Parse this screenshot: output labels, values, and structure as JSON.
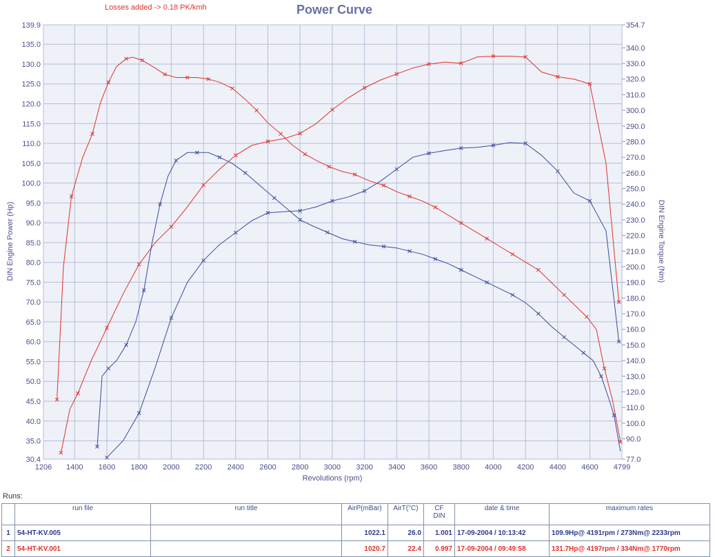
{
  "chart_data": {
    "type": "line",
    "title": "Power Curve",
    "annotation": "Losses added -> 0.18 PK/kmh",
    "xlabel": "Revolutions (rpm)",
    "ylabel": "DIN Engine Power (Hp)",
    "y2label": "DIN Engine Torque (Nm)",
    "xlim": [
      1206,
      4799
    ],
    "ylim": [
      30.4,
      139.9
    ],
    "y2lim": [
      77.0,
      354.7
    ],
    "x_ticks": [
      "1206",
      "1400",
      "1600",
      "1800",
      "2000",
      "2200",
      "2400",
      "2600",
      "2800",
      "3000",
      "3200",
      "3400",
      "3600",
      "3800",
      "4000",
      "4200",
      "4400",
      "4600",
      "4799"
    ],
    "y_ticks": [
      "30.4",
      "35.0",
      "40.0",
      "45.0",
      "50.0",
      "55.0",
      "60.0",
      "65.0",
      "70.0",
      "75.0",
      "80.0",
      "85.0",
      "90.0",
      "95.0",
      "100.0",
      "105.0",
      "110.0",
      "115.0",
      "120.0",
      "125.0",
      "130.0",
      "135.0",
      "139.9"
    ],
    "y2_ticks": [
      "77.0",
      "90.0",
      "100.0",
      "110.0",
      "120.0",
      "130.0",
      "140.0",
      "150.0",
      "160.0",
      "170.0",
      "180.0",
      "190.0",
      "200.0",
      "210.0",
      "220.0",
      "230.0",
      "240.0",
      "250.0",
      "260.0",
      "270.0",
      "280.0",
      "290.0",
      "300.0",
      "310.0",
      "320.0",
      "330.0",
      "340.0",
      "354.7"
    ],
    "grid": true,
    "series": [
      {
        "color": "#e0302a",
        "axis": "left",
        "x": [
          1315,
          1370,
          1420,
          1500,
          1600,
          1700,
          1800,
          1900,
          2000,
          2100,
          2200,
          2300,
          2400,
          2500,
          2600,
          2700,
          2800,
          2900,
          3000,
          3100,
          3200,
          3300,
          3400,
          3500,
          3600,
          3700,
          3800,
          3900,
          4000,
          4100,
          4200,
          4300,
          4400,
          4500,
          4600,
          4700,
          4780
        ],
        "values": [
          32.0,
          43.0,
          47.0,
          55.0,
          63.5,
          72.0,
          79.5,
          85.0,
          89.0,
          94.0,
          99.5,
          103.5,
          107.0,
          109.5,
          110.5,
          111.2,
          112.5,
          115.0,
          118.5,
          121.5,
          124.0,
          126.0,
          127.5,
          129.0,
          130.0,
          130.5,
          130.2,
          131.8,
          132.0,
          132.0,
          131.8,
          128.0,
          126.8,
          126.2,
          125.0,
          105.0,
          70.0
        ]
      },
      {
        "color": "#e0302a",
        "axis": "right",
        "x": [
          1290,
          1330,
          1380,
          1450,
          1510,
          1560,
          1610,
          1660,
          1720,
          1760,
          1820,
          1900,
          1960,
          2030,
          2100,
          2160,
          2230,
          2300,
          2380,
          2460,
          2530,
          2600,
          2680,
          2750,
          2830,
          2900,
          2980,
          3060,
          3140,
          3230,
          3320,
          3400,
          3480,
          3560,
          3640,
          3720,
          3800,
          3880,
          3960,
          4040,
          4120,
          4200,
          4280,
          4360,
          4440,
          4520,
          4580,
          4640,
          4690,
          4740,
          4790
        ],
        "values": [
          115.0,
          200.0,
          245.0,
          270.0,
          285.0,
          305.0,
          318.0,
          328.0,
          333.0,
          334.0,
          332.0,
          327.0,
          323.0,
          321.0,
          321.0,
          321.0,
          320.0,
          318.0,
          314.0,
          307.0,
          300.0,
          292.0,
          285.0,
          278.0,
          272.0,
          268.0,
          264.0,
          261.0,
          259.0,
          255.0,
          252.0,
          248.0,
          245.0,
          242.0,
          238.0,
          233.0,
          228.0,
          223.0,
          218.0,
          213.0,
          208.0,
          203.0,
          198.0,
          190.0,
          182.0,
          174.0,
          168.0,
          160.0,
          135.0,
          115.0,
          88.0
        ]
      },
      {
        "color": "#3a4a9a",
        "axis": "left",
        "x": [
          1600,
          1700,
          1800,
          1900,
          2000,
          2100,
          2200,
          2300,
          2400,
          2500,
          2600,
          2700,
          2800,
          2900,
          3000,
          3100,
          3200,
          3300,
          3400,
          3500,
          3600,
          3700,
          3800,
          3900,
          4000,
          4100,
          4200,
          4300,
          4400,
          4500,
          4600,
          4700,
          4780
        ],
        "values": [
          30.8,
          35.0,
          42.0,
          53.5,
          66.0,
          75.0,
          80.5,
          84.5,
          87.5,
          90.5,
          92.5,
          92.8,
          93.0,
          94.0,
          95.5,
          96.5,
          98.0,
          100.5,
          103.5,
          106.5,
          107.5,
          108.2,
          108.8,
          109.0,
          109.5,
          110.2,
          110.0,
          107.0,
          103.0,
          97.5,
          95.5,
          88.0,
          60.0
        ]
      },
      {
        "color": "#3a4a9a",
        "axis": "right",
        "x": [
          1540,
          1570,
          1610,
          1660,
          1720,
          1780,
          1830,
          1880,
          1930,
          1980,
          2030,
          2100,
          2160,
          2230,
          2300,
          2380,
          2460,
          2550,
          2640,
          2720,
          2800,
          2880,
          2970,
          3060,
          3140,
          3230,
          3320,
          3400,
          3480,
          3560,
          3640,
          3720,
          3800,
          3880,
          3960,
          4040,
          4120,
          4200,
          4280,
          4360,
          4440,
          4500,
          4560,
          4620,
          4670,
          4710,
          4750,
          4790
        ],
        "values": [
          85.0,
          130.0,
          135.0,
          140.0,
          150.0,
          165.0,
          185.0,
          215.0,
          240.0,
          258.0,
          268.0,
          273.0,
          273.0,
          273.0,
          270.0,
          266.0,
          260.0,
          252.0,
          244.0,
          237.0,
          230.0,
          226.0,
          222.0,
          218.0,
          216.0,
          214.0,
          213.0,
          212.0,
          210.0,
          208.0,
          205.0,
          202.0,
          198.0,
          194.0,
          190.0,
          186.0,
          182.0,
          177.0,
          170.0,
          162.0,
          155.0,
          150.0,
          145.0,
          140.0,
          130.0,
          118.0,
          105.0,
          82.0
        ]
      }
    ]
  },
  "runs": {
    "label": "Runs:",
    "headers": {
      "run_file": "run file",
      "run_title": "run title",
      "airp": "AirP(mBar)",
      "airt": "AirT(°C)",
      "cf_line1": "CF",
      "cf_line2": "DIN",
      "datetime": "date & time",
      "max_rates": "maximum rates"
    },
    "rows": [
      {
        "index": "1",
        "file": "54-HT-KV.005",
        "title": "",
        "airp": "1022.1",
        "airt": "26.0",
        "cf": "1.001",
        "datetime": "17-09-2004 / 10:13:42",
        "max": "109.9Hp@ 4191rpm / 273Nm@ 2233rpm"
      },
      {
        "index": "2",
        "file": "54-HT-KV.001",
        "title": "",
        "airp": "1020.7",
        "airt": "22.4",
        "cf": "0.997",
        "datetime": "17-09-2004 / 09:49:58",
        "max": "131.7Hp@ 4197rpm / 334Nm@ 1770rpm"
      }
    ]
  }
}
